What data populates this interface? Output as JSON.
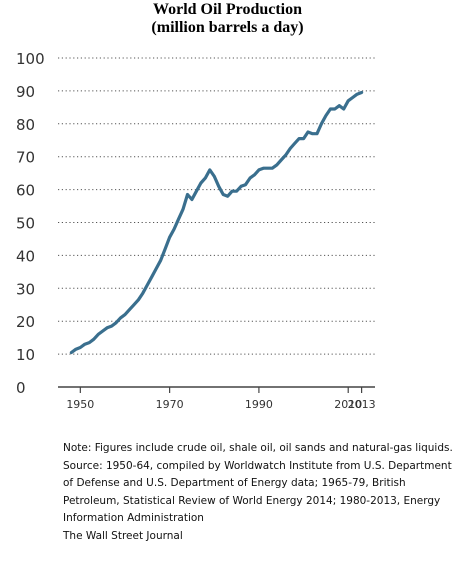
{
  "chart_data": {
    "type": "line",
    "title": "World Oil Production",
    "subtitle": "(million barrels a day)",
    "xlabel": "",
    "ylabel": "",
    "xlim": [
      1945,
      2016
    ],
    "ylim": [
      0,
      100
    ],
    "x_ticks": [
      1950,
      1970,
      1990,
      2010,
      2013
    ],
    "y_ticks": [
      0,
      10,
      20,
      30,
      40,
      50,
      60,
      70,
      80,
      90,
      100
    ],
    "grid": "horizontal-dotted",
    "legend": "none",
    "line_color": "#3a6f8e",
    "series": [
      {
        "x": [
          1948,
          1949,
          1950,
          1951,
          1952,
          1953,
          1954,
          1955,
          1956,
          1957,
          1958,
          1959,
          1960,
          1961,
          1962,
          1963,
          1964,
          1965,
          1966,
          1967,
          1968,
          1969,
          1970,
          1971,
          1972,
          1973,
          1974,
          1975,
          1976,
          1977,
          1978,
          1979,
          1980,
          1981,
          1982,
          1983,
          1984,
          1985,
          1986,
          1987,
          1988,
          1989,
          1990,
          1991,
          1992,
          1993,
          1994,
          1995,
          1996,
          1997,
          1998,
          1999,
          2000,
          2001,
          2002,
          2003,
          2004,
          2005,
          2006,
          2007,
          2008,
          2009,
          2010,
          2011,
          2012,
          2013
        ],
        "values": [
          10.5,
          11.5,
          12,
          13,
          13.5,
          14.5,
          16,
          17,
          18,
          18.5,
          19.5,
          21,
          22,
          23.5,
          25,
          26.5,
          28.5,
          31,
          33.5,
          36,
          38.5,
          42,
          45.5,
          48,
          51,
          54,
          58.5,
          57,
          59.5,
          62,
          63.5,
          66,
          64,
          61,
          58.5,
          58,
          59.5,
          59.5,
          61,
          61.5,
          63.5,
          64.5,
          66,
          66.5,
          66.5,
          66.5,
          67.5,
          69,
          70.5,
          72.5,
          74,
          75.5,
          75.5,
          77.5,
          77,
          77,
          80,
          82.5,
          84.5,
          84.5,
          85.5,
          84.5,
          87,
          88,
          89,
          89.5
        ]
      }
    ]
  },
  "notes": [
    "Note: Figures include crude oil, shale oil, oil sands and natural-gas liquids.",
    "Source: 1950-64, compiled by Worldwatch Institute from U.S. Department",
    "of Defense and U.S. Department of Energy data; 1965-79, British",
    "Petroleum, Statistical Review of World Energy 2014;  1980-2013,  Energy",
    "Information Administration",
    "The Wall Street Journal"
  ]
}
